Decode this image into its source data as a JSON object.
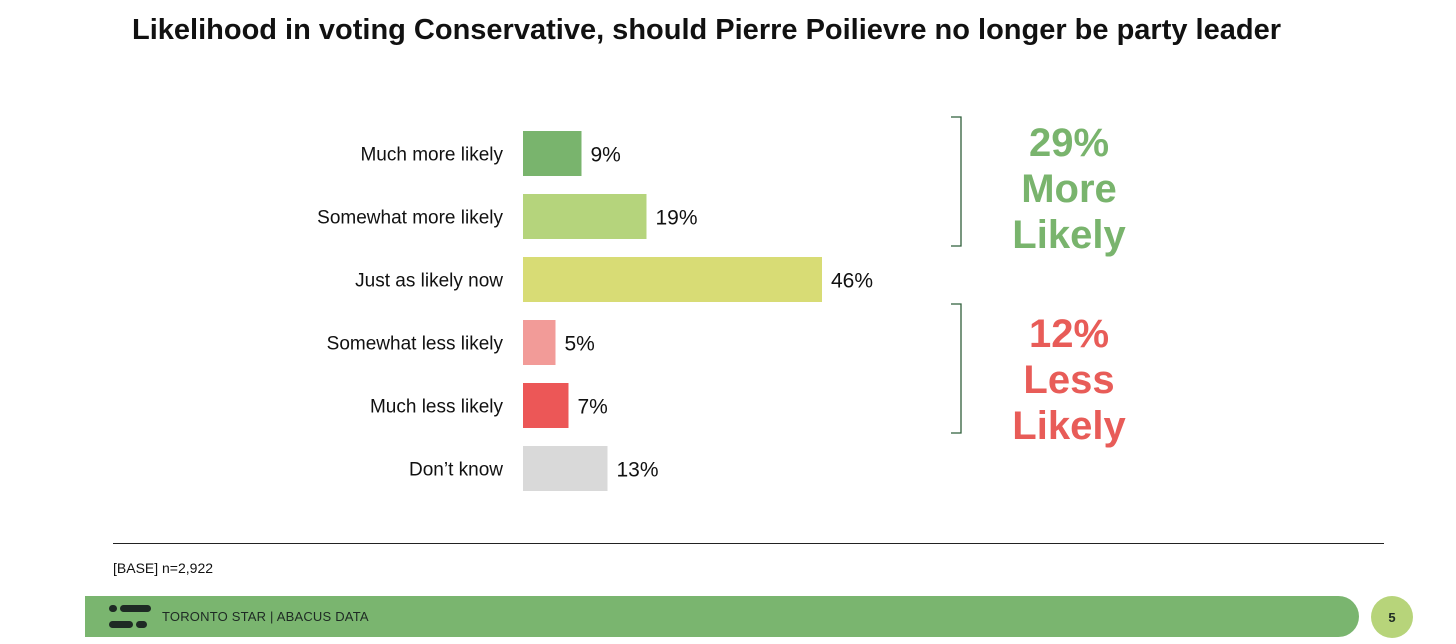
{
  "title": "Likelihood in voting Conservative, should Pierre Poilievre no longer be party leader",
  "chart_data": {
    "type": "bar",
    "orientation": "horizontal",
    "title": "Likelihood in voting Conservative, should Pierre Poilievre no longer be party leader",
    "categories": [
      "Much more likely",
      "Somewhat more likely",
      "Just as likely now",
      "Somewhat less likely",
      "Much less likely",
      "Don’t know"
    ],
    "values": [
      9,
      19,
      46,
      5,
      7,
      13
    ],
    "value_labels": [
      "9%",
      "19%",
      "46%",
      "5%",
      "7%",
      "13%"
    ],
    "colors": [
      "#79b46d",
      "#b5d47c",
      "#d8dc75",
      "#f29b98",
      "#ec5757",
      "#d9d9d9"
    ],
    "xlim": [
      0,
      100
    ],
    "xlabel": "",
    "ylabel": "",
    "grid": false,
    "annotations": [
      {
        "text_lines": [
          "29%",
          "More",
          "Likely"
        ],
        "color": "#79b46d",
        "groups": [
          "Much more likely",
          "Somewhat more likely"
        ]
      },
      {
        "text_lines": [
          "12%",
          "Less",
          "Likely"
        ],
        "color": "#e85c58",
        "groups": [
          "Somewhat less likely",
          "Much less likely"
        ]
      }
    ]
  },
  "footer": {
    "base_note": "[BASE] n=2,922",
    "brand_text": "TORONTO STAR  |  ABACUS DATA",
    "page_number": "5"
  },
  "colors": {
    "footer_bar": "#7ab56f",
    "page_badge": "#b7d47a",
    "bracket_line": "#2f5f3a"
  }
}
